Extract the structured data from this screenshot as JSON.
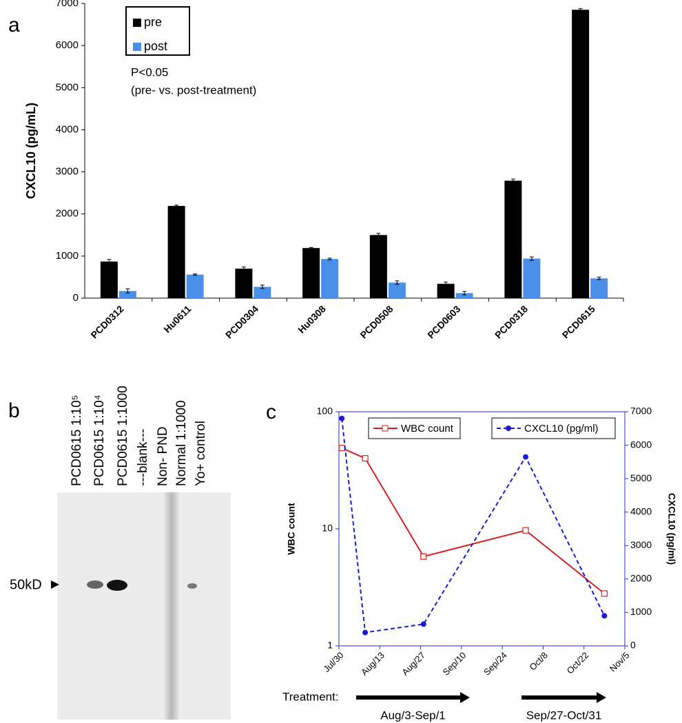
{
  "chart_data": [
    {
      "type": "bar",
      "panel": "a",
      "ylabel": "CXCL10 (pg/mL)",
      "categories": [
        "PCD0312",
        "Hu0611",
        "PCD0304",
        "Hu0308",
        "PCD0508",
        "PCD0603",
        "PCD0318",
        "PCD0615"
      ],
      "series": [
        {
          "name": "pre",
          "color": "#000000",
          "values": [
            870,
            2190,
            700,
            1190,
            1500,
            340,
            2790,
            6850
          ],
          "errors": [
            50,
            20,
            40,
            15,
            40,
            40,
            40,
            30
          ]
        },
        {
          "name": "post",
          "color": "#4a8fe8",
          "values": [
            170,
            560,
            270,
            930,
            370,
            120,
            940,
            470
          ],
          "errors": [
            50,
            15,
            40,
            20,
            40,
            40,
            40,
            30
          ]
        }
      ],
      "ylim": [
        0,
        7000
      ],
      "yticks": [
        0,
        1000,
        2000,
        3000,
        4000,
        5000,
        6000,
        7000
      ],
      "annotations": [
        "P<0.05",
        "(pre- vs. post-treatment)"
      ],
      "legend": "upper left"
    },
    {
      "type": "line",
      "panel": "c",
      "ylabel": "WBC count",
      "y2label": "CXCL10 (pg/ml)",
      "x": [
        1,
        9,
        29,
        64,
        91
      ],
      "xlim": [
        0,
        98
      ],
      "xticks": [
        {
          "value": 0,
          "label": "Jul/30"
        },
        {
          "value": 14,
          "label": "Aug/13"
        },
        {
          "value": 28,
          "label": "Aug/27"
        },
        {
          "value": 42,
          "label": "Sep/10"
        },
        {
          "value": 56,
          "label": "Sep/24"
        },
        {
          "value": 70,
          "label": "Oct/8"
        },
        {
          "value": 84,
          "label": "Oct/22"
        },
        {
          "value": 98,
          "label": "Nov/5"
        }
      ],
      "ylim": [
        1,
        100
      ],
      "yticks": [
        1,
        10,
        100
      ],
      "log_y": true,
      "y2lim": [
        0,
        7000
      ],
      "y2ticks": [
        0,
        1000,
        2000,
        3000,
        4000,
        5000,
        6000,
        7000
      ],
      "series": [
        {
          "name": "WBC count",
          "color": "#d42020",
          "values": [
            49,
            40,
            5.8,
            9.7,
            2.8
          ]
        },
        {
          "name": "CXCL10 (pg/ml)",
          "color": "#1a1ad0",
          "axis": "y2",
          "values": [
            6800,
            400,
            650,
            5650,
            900
          ]
        }
      ],
      "treatment": {
        "label": "Treatment:",
        "periods": [
          "Aug/3-Sep/1",
          "Sep/27-Oct/31"
        ]
      }
    }
  ],
  "blot": {
    "panel": "b",
    "lanes": [
      "PCD0615 1:10⁵",
      "PCD0615 1:10⁴",
      "PCD0615 1:1000",
      "---blank---",
      "Non- PND",
      "Normal 1:1000",
      "Yo+ control"
    ],
    "marker": "50kD"
  }
}
